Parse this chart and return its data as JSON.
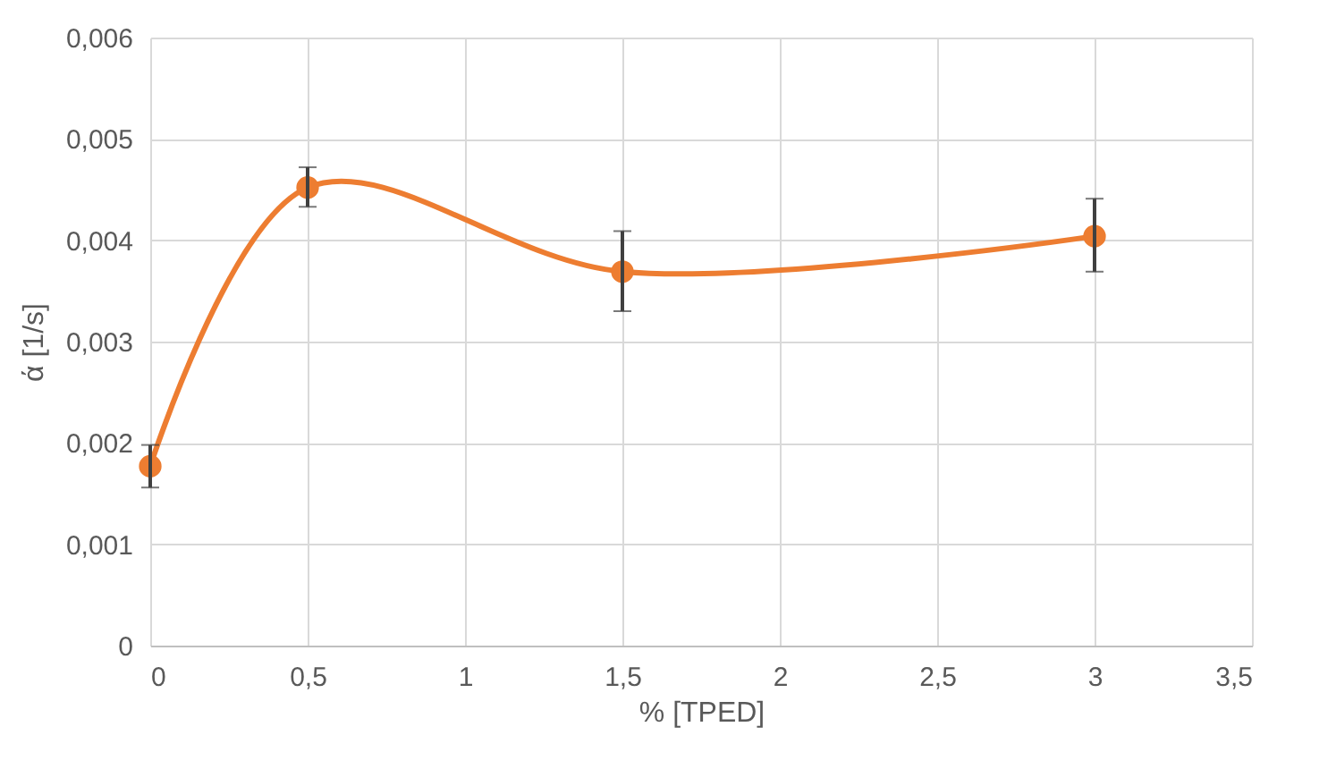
{
  "chart_data": {
    "type": "line",
    "xlabel": "% [TPED]",
    "ylabel": "ά [1/s]",
    "x": [
      0,
      0.5,
      1.5,
      3
    ],
    "series": [
      {
        "color": "#ed7d31",
        "values": [
          0.00177,
          0.00452,
          0.00369,
          0.00404
        ],
        "errors": [
          [
            0.00156,
            0.00198
          ],
          [
            0.00433,
            0.00472
          ],
          [
            0.0033,
            0.00409
          ],
          [
            0.00369,
            0.00441
          ]
        ]
      }
    ],
    "xlim": [
      0,
      3.5
    ],
    "xticks": [
      0,
      {
        "value": 0.5,
        "label": "0,5"
      },
      1,
      {
        "value": 1.5,
        "label": "1,5"
      },
      2,
      {
        "value": 2.5,
        "label": "2,5"
      },
      3,
      {
        "value": 3.5,
        "label": "3,5"
      }
    ],
    "ylim": [
      0,
      0.006
    ],
    "yticks": [
      0,
      {
        "value": 0.001,
        "label": "0,001"
      },
      {
        "value": 0.002,
        "label": "0,002"
      },
      {
        "value": 0.003,
        "label": "0,003"
      },
      {
        "value": 0.004,
        "label": "0,004"
      },
      {
        "value": 0.005,
        "label": "0,005"
      },
      {
        "value": 0.006,
        "label": "0,006"
      }
    ],
    "grid": true,
    "marker": "circle",
    "line_style": "solid"
  }
}
